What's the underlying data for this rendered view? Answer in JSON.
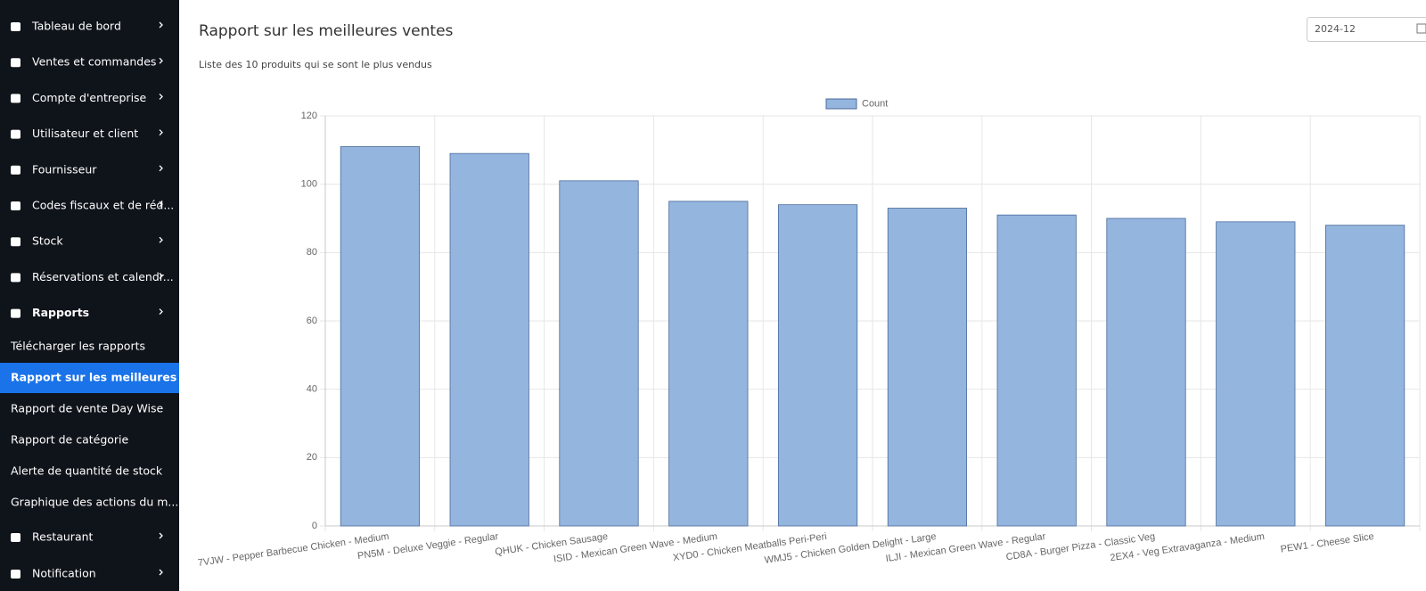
{
  "sidebar": {
    "menu": [
      "Tableau de bord",
      "Ventes et commandes",
      "Compte d'entreprise",
      "Utilisateur et client",
      "Fournisseur",
      "Codes fiscaux et de réd...",
      "Stock",
      "Réservations et calendr...",
      "Rapports"
    ],
    "submenu": [
      "Télécharger les rapports",
      "Rapport sur les meilleures v...",
      "Rapport de vente Day Wise",
      "Rapport de catégorie",
      "Alerte de quantité de stock",
      "Graphique des actions du m..."
    ],
    "menu_bottom": [
      "Restaurant",
      "Notification"
    ]
  },
  "header": {
    "title": "Rapport sur les meilleures ventes",
    "subtitle": "Liste des 10 produits qui se sont le plus vendus",
    "month": "2024-12"
  },
  "chart_data": {
    "type": "bar",
    "categories": [
      "7VJW - Pepper Barbecue Chicken - Medium",
      "PN5M - Deluxe Veggie - Regular",
      "QHUK - Chicken Sausage",
      "ISID - Mexican Green Wave - Medium",
      "XYD0 - Chicken Meatballs Peri-Peri",
      "WMJ5 - Chicken Golden Delight - Large",
      "ILJI - Mexican Green Wave - Regular",
      "CD8A - Burger Pizza - Classic Veg",
      "2EX4 - Veg Extravaganza - Medium",
      "PEW1 - Cheese Slice"
    ],
    "series": [
      {
        "name": "Count",
        "color": "#94b5de",
        "values": [
          111,
          109,
          101,
          95,
          94,
          93,
          91,
          90,
          89,
          88
        ]
      }
    ],
    "ylim": [
      0,
      120
    ],
    "yticks": [
      0,
      20,
      40,
      60,
      80,
      100,
      120
    ],
    "grid": true,
    "legend": "top"
  }
}
